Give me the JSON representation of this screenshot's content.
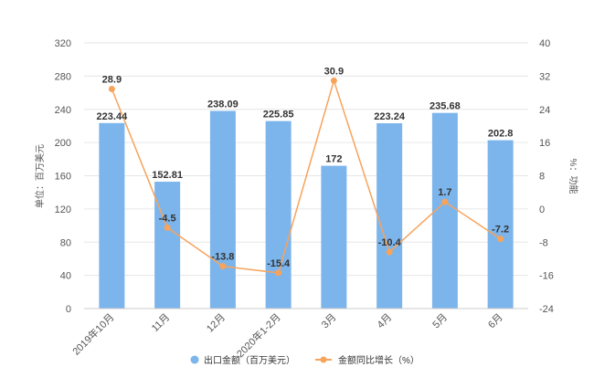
{
  "chart_data": {
    "type": "bar",
    "categories": [
      "2019年10月",
      "11月",
      "12月",
      "2020年1-2月",
      "3月",
      "4月",
      "5月",
      "6月"
    ],
    "series": [
      {
        "name": "出口金额（百万美元）",
        "type": "bar",
        "axis": "left",
        "values": [
          223.44,
          152.81,
          238.09,
          225.85,
          172,
          223.24,
          235.68,
          202.8
        ],
        "color": "#7cb5ec"
      },
      {
        "name": "金额同比增长（%）",
        "type": "line",
        "axis": "right",
        "values": [
          28.9,
          -4.5,
          -13.8,
          -15.4,
          30.9,
          -10.4,
          1.7,
          -7.2
        ],
        "color": "#f7a35c"
      }
    ],
    "ylabel": "单位：百万美元",
    "y2label": "%：功能",
    "ylim": [
      0,
      320
    ],
    "yticks": [
      0,
      40,
      80,
      120,
      160,
      200,
      240,
      280,
      320
    ],
    "y2lim": [
      -24,
      40
    ],
    "y2ticks": [
      -24,
      -16,
      -8,
      0,
      8,
      16,
      24,
      32,
      40
    ],
    "grid": true,
    "legend_position": "bottom-center"
  },
  "colors": {
    "bar": "#7cb5ec",
    "line": "#f7a35c",
    "grid": "#e6e6e6",
    "axis": "#cccccc"
  }
}
